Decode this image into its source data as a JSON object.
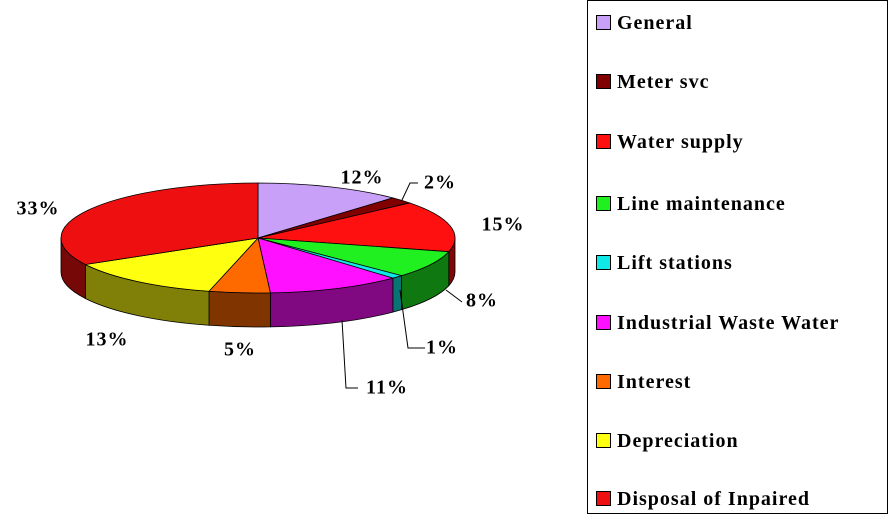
{
  "chart_data": {
    "type": "pie3d",
    "categories": [
      "General",
      "Meter svc",
      "Water supply",
      "Line maintenance",
      "Lift stations",
      "Industrial Waste Water",
      "Interest",
      "Depreciation",
      "Disposal of Inpaired"
    ],
    "values": [
      12,
      2,
      15,
      8,
      1,
      11,
      5,
      13,
      33
    ],
    "value_labels": [
      "12%",
      "2%",
      "15%",
      "8%",
      "1%",
      "11%",
      "5%",
      "13%",
      "33%"
    ],
    "colors": [
      "#c8a0f8",
      "#800000",
      "#ff1010",
      "#20f020",
      "#10e8e8",
      "#ff10ff",
      "#ff6a00",
      "#ffff10",
      "#ee1010"
    ],
    "legend": "right"
  }
}
